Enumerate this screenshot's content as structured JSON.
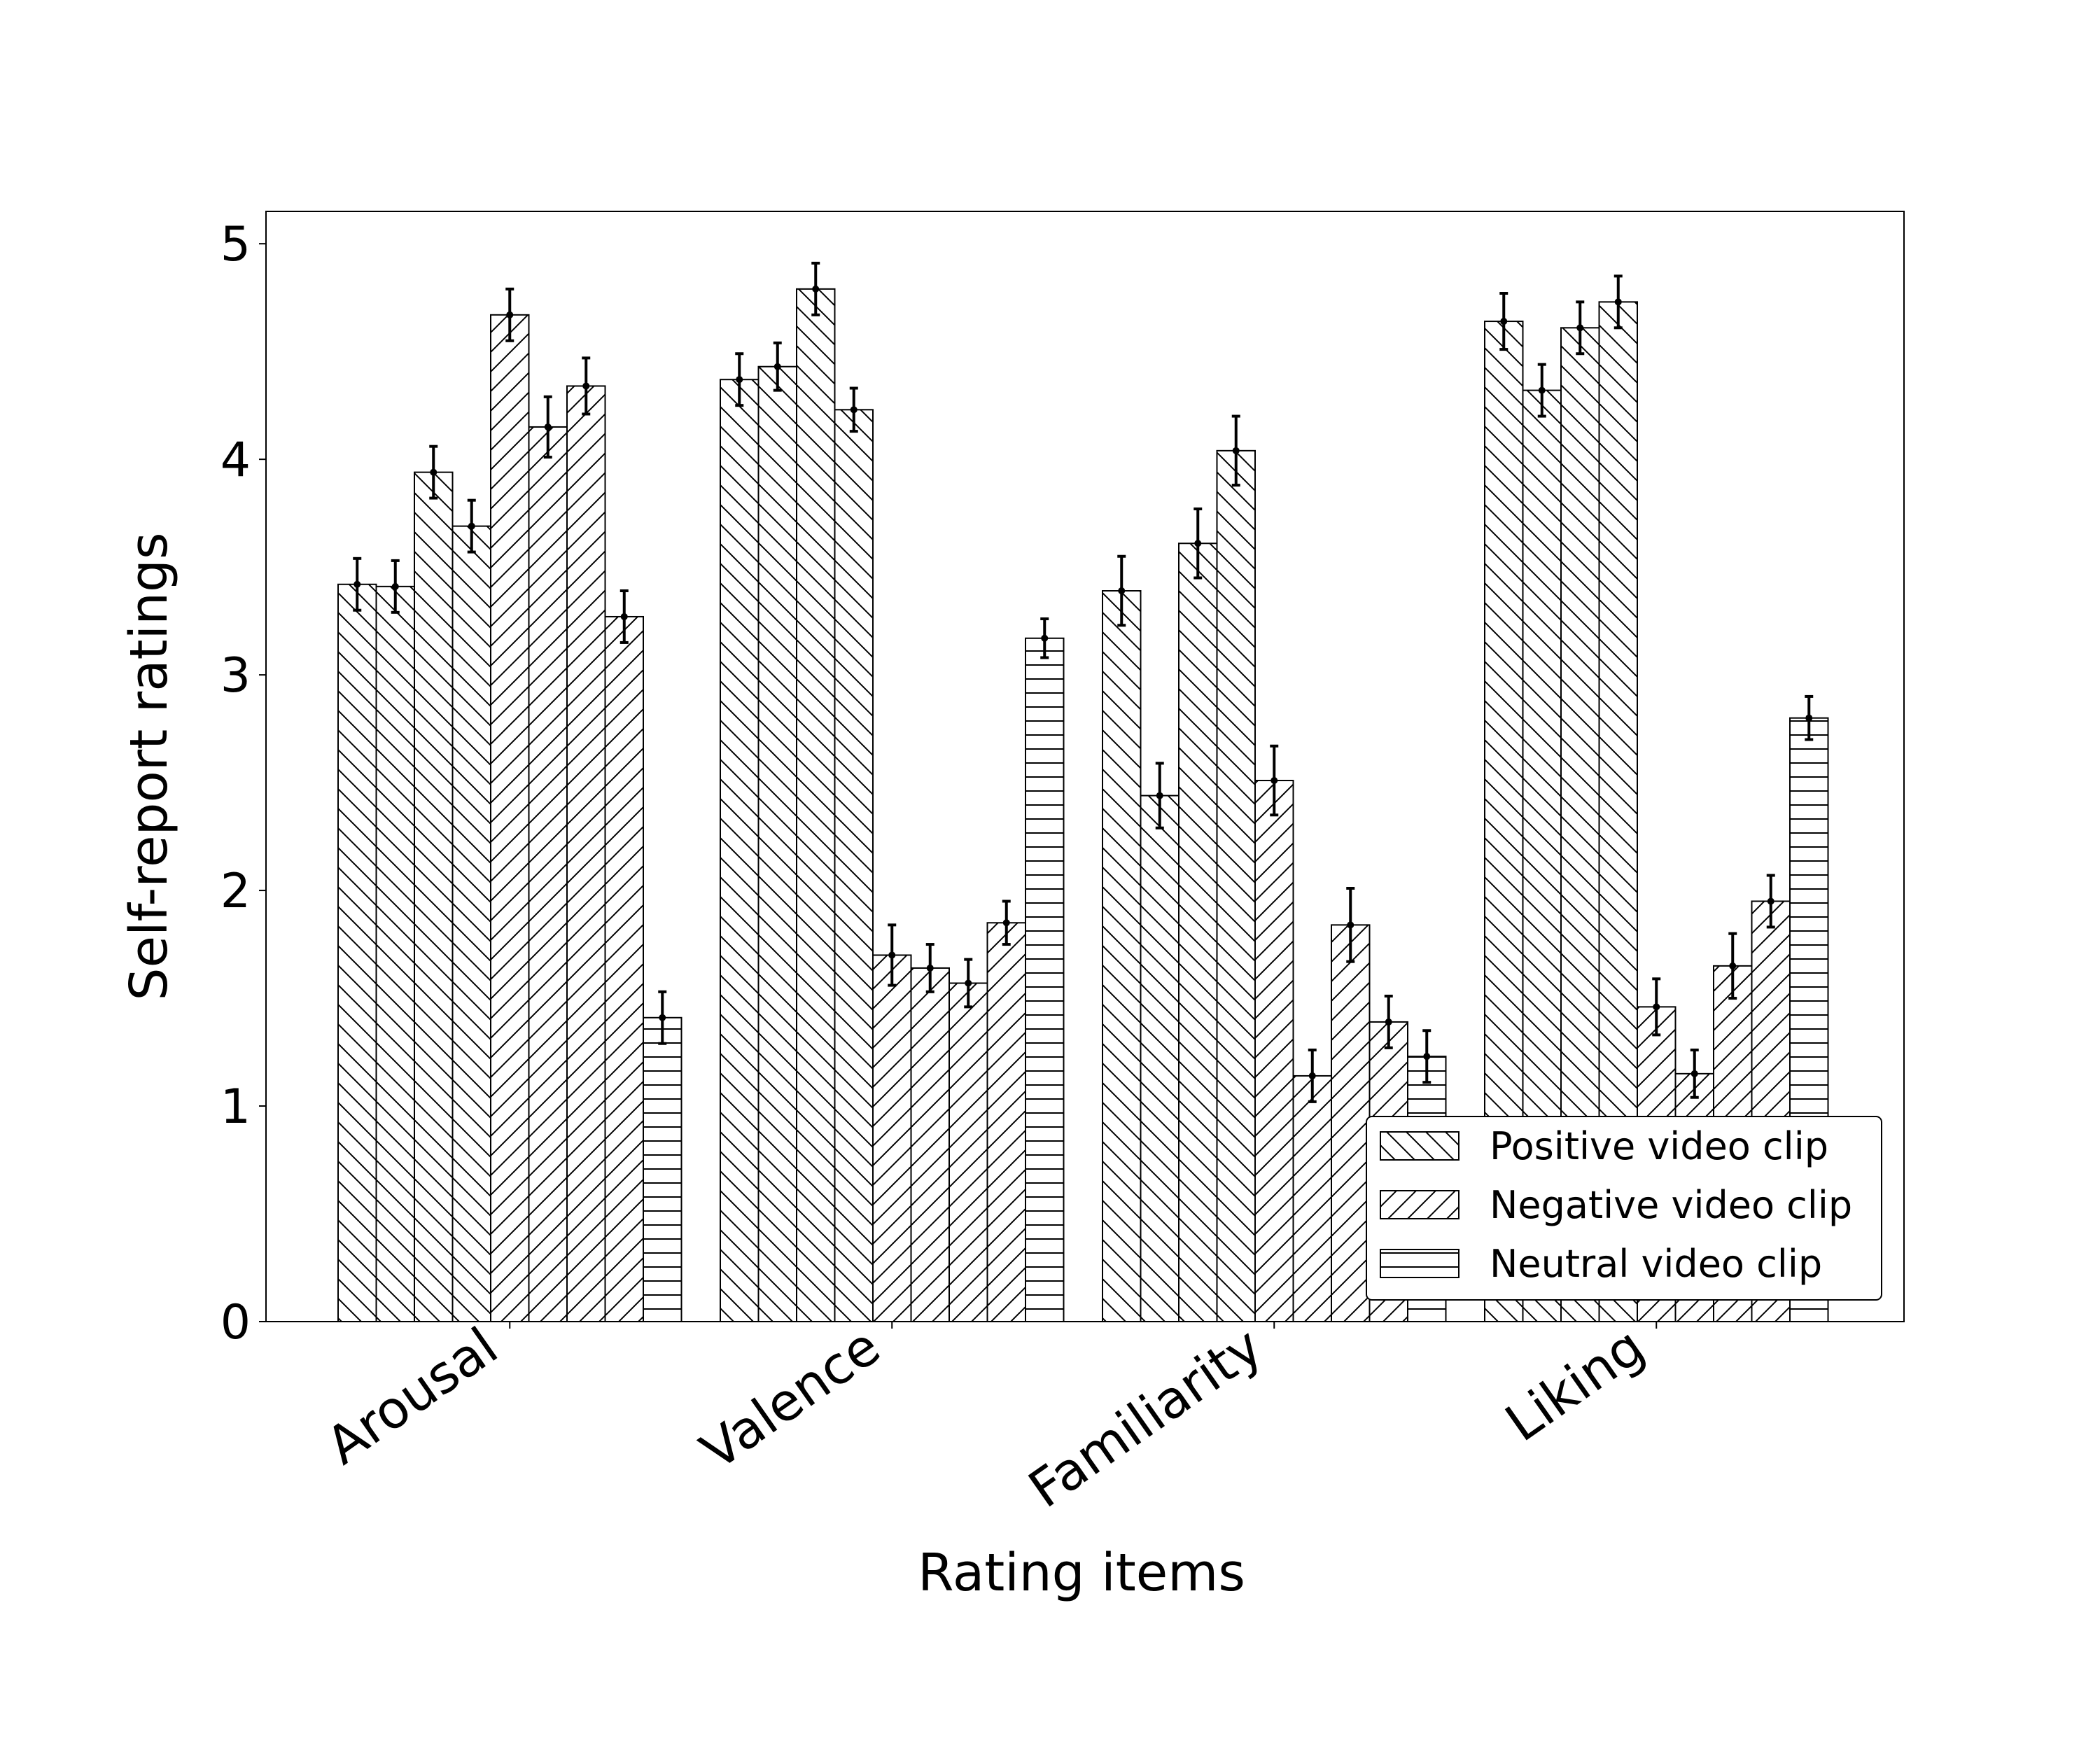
{
  "chart_data": {
    "type": "bar",
    "xlabel": "Rating items",
    "ylabel": "Self-report ratings",
    "ylim": [
      0,
      5.15
    ],
    "yticks": [
      0,
      1,
      2,
      3,
      4,
      5
    ],
    "grid": false,
    "legend_position": "bottom-right",
    "categories": [
      "Arousal",
      "Valence",
      "Familiarity",
      "Liking"
    ],
    "series": [
      {
        "name": "Positive video clip",
        "hatch": "backslash"
      },
      {
        "name": "Negative video clip",
        "hatch": "slash"
      },
      {
        "name": "Neutral video clip",
        "hatch": "horizontal"
      }
    ],
    "groups": [
      {
        "category": "Arousal",
        "bars": [
          {
            "series": 0,
            "value": 3.42,
            "err": 0.12
          },
          {
            "series": 0,
            "value": 3.41,
            "err": 0.12
          },
          {
            "series": 0,
            "value": 3.94,
            "err": 0.12
          },
          {
            "series": 0,
            "value": 3.69,
            "err": 0.12
          },
          {
            "series": 1,
            "value": 4.67,
            "err": 0.12
          },
          {
            "series": 1,
            "value": 4.15,
            "err": 0.14
          },
          {
            "series": 1,
            "value": 4.34,
            "err": 0.13
          },
          {
            "series": 1,
            "value": 3.27,
            "err": 0.12
          },
          {
            "series": 2,
            "value": 1.41,
            "err": 0.12
          }
        ]
      },
      {
        "category": "Valence",
        "bars": [
          {
            "series": 0,
            "value": 4.37,
            "err": 0.12
          },
          {
            "series": 0,
            "value": 4.43,
            "err": 0.11
          },
          {
            "series": 0,
            "value": 4.79,
            "err": 0.12
          },
          {
            "series": 0,
            "value": 4.23,
            "err": 0.1
          },
          {
            "series": 1,
            "value": 1.7,
            "err": 0.14
          },
          {
            "series": 1,
            "value": 1.64,
            "err": 0.11
          },
          {
            "series": 1,
            "value": 1.57,
            "err": 0.11
          },
          {
            "series": 1,
            "value": 1.85,
            "err": 0.1
          },
          {
            "series": 2,
            "value": 3.17,
            "err": 0.09
          }
        ]
      },
      {
        "category": "Familiarity",
        "bars": [
          {
            "series": 0,
            "value": 3.39,
            "err": 0.16
          },
          {
            "series": 0,
            "value": 2.44,
            "err": 0.15
          },
          {
            "series": 0,
            "value": 3.61,
            "err": 0.16
          },
          {
            "series": 0,
            "value": 4.04,
            "err": 0.16
          },
          {
            "series": 1,
            "value": 2.51,
            "err": 0.16
          },
          {
            "series": 1,
            "value": 1.14,
            "err": 0.12
          },
          {
            "series": 1,
            "value": 1.84,
            "err": 0.17
          },
          {
            "series": 1,
            "value": 1.39,
            "err": 0.12
          },
          {
            "series": 2,
            "value": 1.23,
            "err": 0.12
          }
        ]
      },
      {
        "category": "Liking",
        "bars": [
          {
            "series": 0,
            "value": 4.64,
            "err": 0.13
          },
          {
            "series": 0,
            "value": 4.32,
            "err": 0.12
          },
          {
            "series": 0,
            "value": 4.61,
            "err": 0.12
          },
          {
            "series": 0,
            "value": 4.73,
            "err": 0.12
          },
          {
            "series": 1,
            "value": 1.46,
            "err": 0.13
          },
          {
            "series": 1,
            "value": 1.15,
            "err": 0.11
          },
          {
            "series": 1,
            "value": 1.65,
            "err": 0.15
          },
          {
            "series": 1,
            "value": 1.95,
            "err": 0.12
          },
          {
            "series": 2,
            "value": 2.8,
            "err": 0.1
          }
        ]
      }
    ]
  }
}
